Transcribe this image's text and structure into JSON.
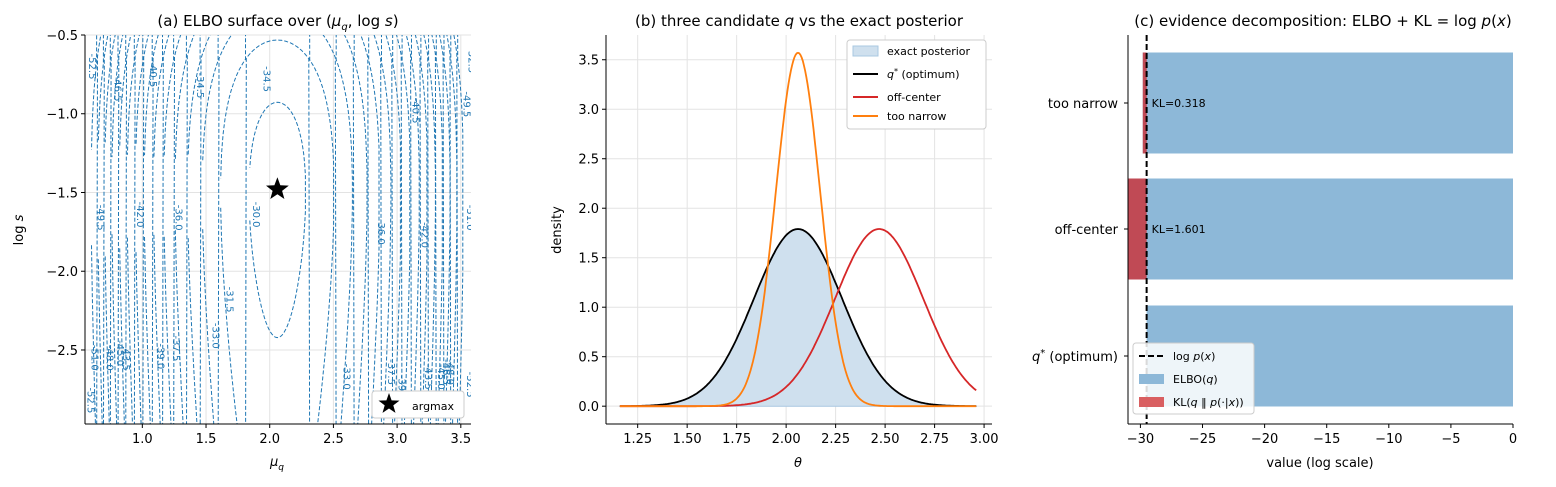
{
  "figure": {
    "colors": {
      "contour": "#1f77b4",
      "exact_fill": "#cfe0ee",
      "exact_edge": "#a9c8e2",
      "optimum": "#000000",
      "off_center": "#d62728",
      "too_narrow": "#ff7f0e",
      "elbo_bar": "#8db8d8",
      "kl_bar": "#c04a55",
      "kl_legend": "#d95f61"
    }
  },
  "chart_data": [
    {
      "type": "contour",
      "title": "(a) ELBO surface over (μq, log s)",
      "title_parts": [
        "(a) ELBO surface over (",
        "μ",
        "q",
        ", log ",
        "s",
        ")"
      ],
      "xlabel": "μq",
      "xlabel_parts": [
        "μ",
        "q"
      ],
      "ylabel": "log s",
      "ylabel_parts": [
        "log ",
        "s"
      ],
      "xlim": [
        0.55,
        3.58
      ],
      "ylim": [
        -2.97,
        -0.5
      ],
      "xticks": [
        1.0,
        1.5,
        2.0,
        2.5,
        3.0,
        3.5
      ],
      "yticks": [
        -2.5,
        -2.0,
        -1.5,
        -1.0,
        -0.5
      ],
      "grid": true,
      "argmax": {
        "x": 2.06,
        "y": -1.48
      },
      "legend": {
        "position": "lower right",
        "entries": [
          "argmax"
        ]
      },
      "levels": [
        -51.0,
        -49.5,
        -48.0,
        -46.5,
        -45.0,
        -43.5,
        -42.0,
        -40.5,
        -39.0,
        -37.5,
        -36.0,
        -34.5,
        -33.0,
        -31.5,
        -30.0
      ],
      "contour_labels": [
        {
          "text": "-30.0",
          "x": 1.87,
          "y": -1.64
        },
        {
          "text": "-31.5",
          "x": 1.66,
          "y": -2.18
        },
        {
          "text": "-33.0",
          "x": 1.55,
          "y": -2.41
        },
        {
          "text": "-33.0",
          "x": 2.58,
          "y": -2.67
        },
        {
          "text": "-34.5",
          "x": 1.95,
          "y": -0.78
        },
        {
          "text": "-34.5",
          "x": 1.43,
          "y": -0.82
        },
        {
          "text": "-36.0",
          "x": 1.26,
          "y": -1.66
        },
        {
          "text": "-36.0",
          "x": 2.85,
          "y": -1.75
        },
        {
          "text": "-37.5",
          "x": 1.24,
          "y": -2.49
        },
        {
          "text": "-37.5",
          "x": 2.93,
          "y": -2.64
        },
        {
          "text": "-39.0",
          "x": 1.12,
          "y": -2.54
        },
        {
          "text": "-39.0",
          "x": 3.01,
          "y": -2.74
        },
        {
          "text": "-40.5",
          "x": 1.06,
          "y": -0.75
        },
        {
          "text": "-40.5",
          "x": 3.12,
          "y": -0.98
        },
        {
          "text": "-42.0",
          "x": 0.96,
          "y": -1.64
        },
        {
          "text": "-42.0",
          "x": 3.19,
          "y": -1.77
        },
        {
          "text": "-43.5",
          "x": 0.85,
          "y": -2.55
        },
        {
          "text": "-43.5",
          "x": 3.22,
          "y": -2.67
        },
        {
          "text": "-45.0",
          "x": 0.8,
          "y": -2.52
        },
        {
          "text": "-45.0",
          "x": 3.32,
          "y": -2.67
        },
        {
          "text": "-46.5",
          "x": 0.78,
          "y": -0.84
        },
        {
          "text": "-46.5",
          "x": 3.36,
          "y": -2.64
        },
        {
          "text": "-48.0",
          "x": 0.72,
          "y": -2.55
        },
        {
          "text": "-48.0",
          "x": 3.39,
          "y": -2.64
        },
        {
          "text": "-49.5",
          "x": 0.65,
          "y": -1.66
        },
        {
          "text": "-49.5",
          "x": 3.52,
          "y": -0.94
        },
        {
          "text": "-51.0",
          "x": 0.6,
          "y": -2.55
        },
        {
          "text": "-51.0",
          "x": 3.55,
          "y": -1.66
        },
        {
          "text": "-52.5",
          "x": 0.58,
          "y": -0.7
        },
        {
          "text": "-52.5",
          "x": 3.55,
          "y": -2.72
        },
        {
          "text": "-52.5",
          "x": 3.56,
          "y": -0.66
        },
        {
          "text": "-52.5",
          "x": 0.57,
          "y": -2.82
        }
      ]
    },
    {
      "type": "line",
      "title": "(b) three candidate q vs the exact posterior",
      "title_parts": [
        "(b) three candidate ",
        "q",
        " vs the exact posterior"
      ],
      "xlabel": "θ",
      "ylabel": "density",
      "xlim": [
        1.09,
        3.04
      ],
      "ylim": [
        -0.18,
        3.75
      ],
      "xticks": [
        1.25,
        1.5,
        1.75,
        2.0,
        2.25,
        2.5,
        2.75,
        3.0
      ],
      "xtick_labels": [
        "1.25",
        "1.50",
        "1.75",
        "2.00",
        "2.25",
        "2.50",
        "2.75",
        "3.00"
      ],
      "yticks": [
        0.0,
        0.5,
        1.0,
        1.5,
        2.0,
        2.5,
        3.0,
        3.5
      ],
      "ytick_labels": [
        "0.0",
        "0.5",
        "1.0",
        "1.5",
        "2.0",
        "2.5",
        "3.0",
        "3.5"
      ],
      "grid": true,
      "x_range": [
        1.16,
        2.96
      ],
      "series": [
        {
          "name": "exact posterior",
          "style": "area",
          "mean": 2.06,
          "sd": 0.223,
          "peak": 1.79
        },
        {
          "name": "q* (optimum)",
          "style": "line",
          "mean": 2.06,
          "sd": 0.223,
          "peak": 1.79
        },
        {
          "name": "off-center",
          "style": "line",
          "mean": 2.47,
          "sd": 0.223,
          "peak": 1.79
        },
        {
          "name": "too narrow",
          "style": "line",
          "mean": 2.06,
          "sd": 0.112,
          "peak": 3.57
        }
      ],
      "legend": {
        "position": "top-right",
        "entries": [
          "exact posterior",
          "q* (optimum)",
          "off-center",
          "too narrow"
        ]
      }
    },
    {
      "type": "bar",
      "orientation": "horizontal",
      "title": "(c) evidence decomposition: ELBO + KL = log p(x)",
      "title_parts": [
        "(c) evidence decomposition: ",
        "ELBO",
        " + ",
        "KL",
        " = log ",
        "p",
        "(",
        "x",
        ")"
      ],
      "xlabel": "value (log scale)",
      "xlim": [
        -31.0,
        0.0
      ],
      "xticks": [
        -30,
        -25,
        -20,
        -15,
        -10,
        -5,
        0
      ],
      "xtick_labels": [
        "−30",
        "−25",
        "−20",
        "−15",
        "−10",
        "−5",
        "0"
      ],
      "categories": [
        "q* (optimum)",
        "off-center",
        "too narrow"
      ],
      "category_labels": [
        {
          "base": "q",
          "sup": "*",
          "rest": " (optimum)"
        },
        {
          "base": "off-center",
          "sup": "",
          "rest": ""
        },
        {
          "base": "too narrow",
          "sup": "",
          "rest": ""
        }
      ],
      "series": [
        {
          "name": "ELBO(q)",
          "values": [
            -29.5,
            -31.1,
            -29.81
          ]
        },
        {
          "name": "KL(q ‖ p(·|x))",
          "values": [
            0.0,
            1.601,
            0.318
          ]
        }
      ],
      "kl_labels": [
        "",
        "KL=1.601",
        "KL=0.318"
      ],
      "log_px": -29.5,
      "grid": false,
      "legend": {
        "position": "lower left",
        "entries": [
          "log p(x)",
          "ELBO(q)",
          "KL(q ‖ p(·|x))"
        ]
      }
    }
  ]
}
